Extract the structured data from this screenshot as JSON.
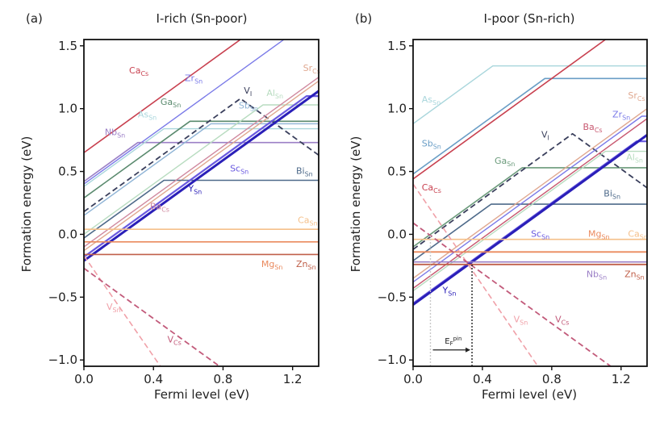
{
  "chart_data": [
    {
      "type": "line",
      "panel_tag": "(a)",
      "title": "I-rich (Sn-poor)",
      "xlabel": "Fermi level (eV)",
      "ylabel": "Formation energy (eV)",
      "xlim": [
        0,
        1.35
      ],
      "ylim": [
        -1.05,
        1.55
      ],
      "xticks": [
        "0.0",
        "0.4",
        "0.8",
        "1.2"
      ],
      "xtick_values": [
        0,
        0.4,
        0.8,
        1.2
      ],
      "yticks": [
        "−1.0",
        "−0.5",
        "0.0",
        "0.5",
        "1.0",
        "1.5"
      ],
      "ytick_values": [
        -1.0,
        -0.5,
        0.0,
        0.5,
        1.0,
        1.5
      ],
      "series": [
        {
          "name": "Ca",
          "sub": "Cs",
          "color": "#c8404f",
          "dash": false,
          "width": 1.6,
          "points": [
            [
              0,
              0.65
            ],
            [
              1.35,
              2.0
            ]
          ],
          "label_at": [
            0.26,
            1.28
          ]
        },
        {
          "name": "Zr",
          "sub": "Sn",
          "color": "#7a7ae8",
          "dash": false,
          "width": 1.4,
          "points": [
            [
              0,
              0.4
            ],
            [
              1.35,
              1.75
            ]
          ],
          "label_at": [
            0.58,
            1.22
          ]
        },
        {
          "name": "Nb",
          "sub": "Sn",
          "color": "#9b7fc6",
          "dash": false,
          "width": 1.6,
          "points": [
            [
              0,
              0.42
            ],
            [
              0.31,
              0.73
            ],
            [
              1.35,
              0.73
            ]
          ],
          "label_at": [
            0.12,
            0.79
          ]
        },
        {
          "name": "As",
          "sub": "Sn",
          "color": "#a9d6dc",
          "dash": false,
          "width": 1.4,
          "points": [
            [
              0,
              0.38
            ],
            [
              0.46,
              0.84
            ],
            [
              1.35,
              0.84
            ]
          ],
          "label_at": [
            0.31,
            0.93
          ]
        },
        {
          "name": "Ga",
          "sub": "Sn",
          "color": "#5a8a6e",
          "dash": false,
          "width": 1.6,
          "points": [
            [
              0,
              0.29
            ],
            [
              0.61,
              0.9
            ],
            [
              1.35,
              0.9
            ]
          ],
          "label_at": [
            0.44,
            1.03
          ]
        },
        {
          "name": "Sb",
          "sub": "Sn",
          "color": "#8fb4d6",
          "dash": false,
          "width": 1.4,
          "points": [
            [
              0,
              0.15
            ],
            [
              0.73,
              0.88
            ],
            [
              1.35,
              0.88
            ]
          ],
          "label_at": [
            0.89,
            1.0
          ]
        },
        {
          "name": "V",
          "sub": "I",
          "color": "#3a3f5c",
          "dash": true,
          "width": 1.8,
          "points": [
            [
              0,
              0.18
            ],
            [
              0.9,
              1.08
            ],
            [
              1.35,
              0.63
            ]
          ],
          "label_at": [
            0.92,
            1.12
          ]
        },
        {
          "name": "Al",
          "sub": "Sn",
          "color": "#b8dcc0",
          "dash": false,
          "width": 1.4,
          "points": [
            [
              0,
              0.0
            ],
            [
              1.03,
              1.03
            ],
            [
              1.35,
              1.03
            ]
          ],
          "label_at": [
            1.05,
            1.1
          ]
        },
        {
          "name": "Sr",
          "sub": "Cs",
          "color": "#e0a890",
          "dash": false,
          "width": 1.4,
          "points": [
            [
              0,
              -0.13
            ],
            [
              1.35,
              1.22
            ]
          ],
          "label_at": [
            1.26,
            1.3
          ]
        },
        {
          "name": "Bi",
          "sub": "Sn",
          "color": "#4e6a8a",
          "dash": false,
          "width": 1.6,
          "points": [
            [
              0,
              -0.03
            ],
            [
              0.46,
              0.43
            ],
            [
              1.35,
              0.43
            ]
          ],
          "label_at": [
            1.22,
            0.48
          ]
        },
        {
          "name": "Ba",
          "sub": "Cs",
          "color": "#d08aa0",
          "dash": false,
          "width": 1.4,
          "points": [
            [
              0,
              -0.1
            ],
            [
              1.35,
              1.25
            ]
          ],
          "label_at": [
            0.38,
            0.2
          ]
        },
        {
          "name": "Sc",
          "sub": "Sn",
          "color": "#6a5ae0",
          "dash": false,
          "width": 2.2,
          "points": [
            [
              0,
              -0.18
            ],
            [
              1.28,
              1.1
            ],
            [
              1.35,
              1.1
            ]
          ],
          "label_at": [
            0.84,
            0.5
          ]
        },
        {
          "name": "Y",
          "sub": "Sn",
          "color": "#2a1fb8",
          "dash": false,
          "width": 3.0,
          "points": [
            [
              0,
              -0.21
            ],
            [
              1.35,
              1.14
            ]
          ],
          "label_at": [
            0.6,
            0.34
          ]
        },
        {
          "name": "Ca",
          "sub": "Sn",
          "color": "#f5c08a",
          "dash": false,
          "width": 1.6,
          "points": [
            [
              0,
              0.04
            ],
            [
              1.35,
              0.04
            ]
          ],
          "label_at": [
            1.23,
            0.09
          ]
        },
        {
          "name": "Mg",
          "sub": "Sn",
          "color": "#ea8a5e",
          "dash": false,
          "width": 1.6,
          "points": [
            [
              0,
              -0.06
            ],
            [
              1.35,
              -0.06
            ]
          ],
          "label_at": [
            1.02,
            -0.26
          ]
        },
        {
          "name": "Zn",
          "sub": "Sn",
          "color": "#c0604a",
          "dash": false,
          "width": 1.6,
          "points": [
            [
              0,
              -0.16
            ],
            [
              1.35,
              -0.16
            ]
          ],
          "label_at": [
            1.22,
            -0.26
          ]
        },
        {
          "name": "V",
          "sub": "Sn",
          "color": "#f0a0a8",
          "dash": true,
          "width": 1.6,
          "points": [
            [
              0,
              -0.17
            ],
            [
              0.44,
              -1.05
            ]
          ],
          "label_at": [
            0.13,
            -0.6
          ]
        },
        {
          "name": "V",
          "sub": "Cs",
          "color": "#c25a7a",
          "dash": true,
          "width": 1.8,
          "points": [
            [
              0,
              -0.27
            ],
            [
              0.78,
              -1.05
            ]
          ],
          "label_at": [
            0.48,
            -0.86
          ]
        }
      ]
    },
    {
      "type": "line",
      "panel_tag": "(b)",
      "title": "I-poor (Sn-rich)",
      "xlabel": "Fermi level (eV)",
      "ylabel": "Formation energy (eV)",
      "xlim": [
        0,
        1.35
      ],
      "ylim": [
        -1.05,
        1.55
      ],
      "xticks": [
        "0.0",
        "0.4",
        "0.8",
        "1.2"
      ],
      "xtick_values": [
        0,
        0.4,
        0.8,
        1.2
      ],
      "yticks": [
        "−1.0",
        "−0.5",
        "0.0",
        "0.5",
        "1.0",
        "1.5"
      ],
      "ytick_values": [
        -1.0,
        -0.5,
        0.0,
        0.5,
        1.0,
        1.5
      ],
      "annotation": {
        "text": "E",
        "sub": "F",
        "sup": "pin",
        "ef_pin": 0.34,
        "ef_start": 0.1,
        "energy": -0.23
      },
      "series": [
        {
          "name": "As",
          "sub": "Sn",
          "color": "#a9d6dc",
          "dash": false,
          "width": 1.4,
          "points": [
            [
              0,
              0.88
            ],
            [
              0.46,
              1.34
            ],
            [
              1.35,
              1.34
            ]
          ],
          "label_at": [
            0.05,
            1.05
          ]
        },
        {
          "name": "Sb",
          "sub": "Sn",
          "color": "#6a9ec6",
          "dash": false,
          "width": 1.6,
          "points": [
            [
              0,
              0.48
            ],
            [
              0.76,
              1.24
            ],
            [
              1.35,
              1.24
            ]
          ],
          "label_at": [
            0.05,
            0.7
          ]
        },
        {
          "name": "Ca",
          "sub": "Cs",
          "color": "#c8404f",
          "dash": false,
          "width": 1.6,
          "points": [
            [
              0,
              0.44
            ],
            [
              1.35,
              1.79
            ]
          ],
          "label_at": [
            0.05,
            0.35
          ]
        },
        {
          "name": "Ga",
          "sub": "Sn",
          "color": "#6a9a7a",
          "dash": false,
          "width": 1.6,
          "points": [
            [
              0,
              -0.1
            ],
            [
              0.63,
              0.53
            ],
            [
              1.35,
              0.53
            ]
          ],
          "label_at": [
            0.47,
            0.56
          ]
        },
        {
          "name": "V",
          "sub": "I",
          "color": "#3a3f5c",
          "dash": true,
          "width": 1.8,
          "points": [
            [
              0,
              -0.12
            ],
            [
              0.92,
              0.8
            ],
            [
              1.35,
              0.37
            ]
          ],
          "label_at": [
            0.74,
            0.77
          ]
        },
        {
          "name": "Bi",
          "sub": "Sn",
          "color": "#4e6a8a",
          "dash": false,
          "width": 1.6,
          "points": [
            [
              0,
              -0.21
            ],
            [
              0.45,
              0.24
            ],
            [
              1.35,
              0.24
            ]
          ],
          "label_at": [
            1.1,
            0.3
          ]
        },
        {
          "name": "Sr",
          "sub": "Cs",
          "color": "#e0a890",
          "dash": false,
          "width": 1.4,
          "points": [
            [
              0,
              -0.35
            ],
            [
              1.35,
              1.0
            ]
          ],
          "label_at": [
            1.24,
            1.08
          ]
        },
        {
          "name": "Zr",
          "sub": "Sn",
          "color": "#7a7ae8",
          "dash": false,
          "width": 1.4,
          "points": [
            [
              0,
              -0.38
            ],
            [
              1.32,
              0.94
            ],
            [
              1.35,
              0.94
            ]
          ],
          "label_at": [
            1.15,
            0.93
          ]
        },
        {
          "name": "Ba",
          "sub": "Cs",
          "color": "#c85870",
          "dash": false,
          "width": 1.4,
          "points": [
            [
              0,
              -0.43
            ],
            [
              1.35,
              0.92
            ]
          ],
          "label_at": [
            0.98,
            0.83
          ]
        },
        {
          "name": "Al",
          "sub": "Sn",
          "color": "#b8dcc0",
          "dash": false,
          "width": 1.4,
          "points": [
            [
              0,
              -0.45
            ],
            [
              1.11,
              0.66
            ],
            [
              1.35,
              0.66
            ]
          ],
          "label_at": [
            1.23,
            0.59
          ]
        },
        {
          "name": "Sc",
          "sub": "Sn",
          "color": "#6a5ae0",
          "dash": false,
          "width": 2.2,
          "points": [
            [
              0,
              -0.55
            ],
            [
              1.29,
              0.74
            ],
            [
              1.35,
              0.74
            ]
          ],
          "label_at": [
            0.68,
            -0.02
          ]
        },
        {
          "name": "Y",
          "sub": "Sn",
          "color": "#2a1fb8",
          "dash": false,
          "width": 3.0,
          "points": [
            [
              0,
              -0.56
            ],
            [
              1.35,
              0.79
            ]
          ],
          "label_at": [
            0.17,
            -0.47
          ]
        },
        {
          "name": "Ca",
          "sub": "Sn",
          "color": "#f5c08a",
          "dash": false,
          "width": 1.6,
          "points": [
            [
              0,
              -0.04
            ],
            [
              1.35,
              -0.04
            ]
          ],
          "label_at": [
            1.24,
            -0.02
          ]
        },
        {
          "name": "Mg",
          "sub": "Sn",
          "color": "#ea8a5e",
          "dash": false,
          "width": 1.8,
          "points": [
            [
              0,
              -0.14
            ],
            [
              1.35,
              -0.14
            ]
          ],
          "label_at": [
            1.01,
            -0.02
          ]
        },
        {
          "name": "Nb",
          "sub": "Sn",
          "color": "#9b7fc6",
          "dash": false,
          "width": 1.6,
          "points": [
            [
              0,
              -0.22
            ],
            [
              1.35,
              -0.22
            ]
          ],
          "label_at": [
            1.0,
            -0.34
          ]
        },
        {
          "name": "Zn",
          "sub": "Sn",
          "color": "#c0604a",
          "dash": false,
          "width": 1.8,
          "points": [
            [
              0,
              -0.24
            ],
            [
              1.35,
              -0.24
            ]
          ],
          "label_at": [
            1.22,
            -0.34
          ]
        },
        {
          "name": "V",
          "sub": "Sn",
          "color": "#f0a0a8",
          "dash": true,
          "width": 1.6,
          "points": [
            [
              0,
              0.4
            ],
            [
              0.72,
              -1.05
            ]
          ],
          "label_at": [
            0.58,
            -0.7
          ]
        },
        {
          "name": "V",
          "sub": "Cs",
          "color": "#c25a7a",
          "dash": true,
          "width": 1.8,
          "points": [
            [
              0,
              0.09
            ],
            [
              1.14,
              -1.05
            ]
          ],
          "label_at": [
            0.82,
            -0.7
          ]
        }
      ]
    }
  ]
}
